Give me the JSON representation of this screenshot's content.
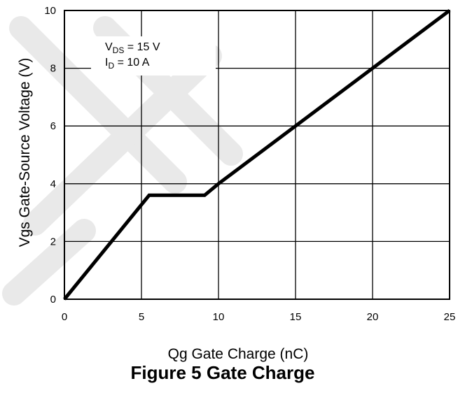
{
  "chart_data": {
    "type": "line",
    "title": "Figure 5 Gate Charge",
    "xlabel": "Qg Gate Charge (nC)",
    "ylabel": "Vgs Gate-Source Voltage (V)",
    "xlim": [
      0,
      25
    ],
    "ylim": [
      0,
      10
    ],
    "x_ticks": [
      "0",
      "5",
      "10",
      "15",
      "20",
      "25"
    ],
    "y_ticks": [
      "0",
      "2",
      "4",
      "6",
      "8",
      "10"
    ],
    "grid": true,
    "series": [
      {
        "x": [
          0,
          5.5,
          9.1,
          10,
          25
        ],
        "y": [
          0,
          3.6,
          3.6,
          4.0,
          10
        ]
      }
    ],
    "annotations": {
      "vds_main": "V",
      "vds_sub": "DS",
      "vds_rest": " = 15 V",
      "id_main": "I",
      "id_sub": "D",
      "id_rest": " = 10 A"
    },
    "colors": {
      "line": "#000000",
      "grid": "#000000",
      "watermark": "#e9e9e9"
    }
  }
}
